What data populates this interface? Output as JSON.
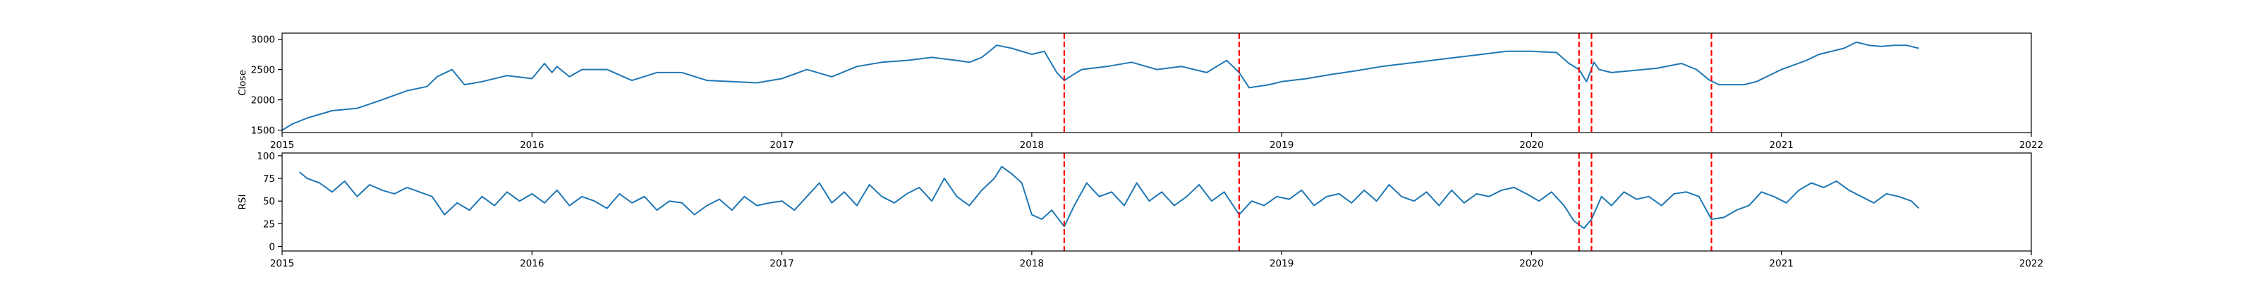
{
  "chart_data": [
    {
      "type": "line",
      "ylabel": "Close",
      "xlabel": "",
      "title": "",
      "xlim": [
        2015.0,
        2022.0
      ],
      "ylim": [
        1460,
        3100
      ],
      "x_ticks": [
        2015,
        2016,
        2017,
        2018,
        2019,
        2020,
        2021,
        2022
      ],
      "x_tick_labels": [
        "2015",
        "2016",
        "2017",
        "2018",
        "2019",
        "2020",
        "2021",
        "2022"
      ],
      "y_ticks": [
        1500,
        2000,
        2500,
        3000
      ],
      "y_tick_labels": [
        "1500",
        "2000",
        "2500",
        "3000"
      ],
      "line_color": "#1f77b4",
      "series": [
        {
          "x": [
            2015.0,
            2015.04,
            2015.1,
            2015.2,
            2015.3,
            2015.4,
            2015.5,
            2015.58,
            2015.62,
            2015.68,
            2015.73,
            2015.8,
            2015.9,
            2016.0,
            2016.05,
            2016.08,
            2016.1,
            2016.15,
            2016.2,
            2016.3,
            2016.4,
            2016.5,
            2016.6,
            2016.7,
            2016.8,
            2016.9,
            2017.0,
            2017.1,
            2017.2,
            2017.3,
            2017.4,
            2017.5,
            2017.6,
            2017.7,
            2017.75,
            2017.8,
            2017.86,
            2017.92,
            2018.0,
            2018.05,
            2018.1,
            2018.13,
            2018.16,
            2018.2,
            2018.3,
            2018.4,
            2018.5,
            2018.6,
            2018.7,
            2018.78,
            2018.83,
            2018.87,
            2018.95,
            2019.0,
            2019.1,
            2019.2,
            2019.3,
            2019.4,
            2019.5,
            2019.6,
            2019.7,
            2019.8,
            2019.9,
            2020.0,
            2020.1,
            2020.15,
            2020.19,
            2020.22,
            2020.25,
            2020.27,
            2020.32,
            2020.4,
            2020.5,
            2020.6,
            2020.66,
            2020.71,
            2020.75,
            2020.8,
            2020.85,
            2020.9,
            2021.0,
            2021.1,
            2021.15,
            2021.2,
            2021.25,
            2021.3,
            2021.35,
            2021.4,
            2021.45,
            2021.5,
            2021.55
          ],
          "y": [
            1500,
            1600,
            1700,
            1820,
            1860,
            2000,
            2150,
            2220,
            2380,
            2500,
            2250,
            2300,
            2400,
            2350,
            2600,
            2450,
            2550,
            2380,
            2500,
            2500,
            2320,
            2450,
            2450,
            2320,
            2300,
            2280,
            2350,
            2500,
            2380,
            2550,
            2620,
            2650,
            2700,
            2650,
            2620,
            2700,
            2900,
            2850,
            2750,
            2800,
            2450,
            2320,
            2400,
            2500,
            2550,
            2620,
            2500,
            2550,
            2450,
            2650,
            2450,
            2200,
            2250,
            2300,
            2350,
            2420,
            2480,
            2550,
            2600,
            2650,
            2700,
            2750,
            2800,
            2800,
            2780,
            2600,
            2500,
            2300,
            2620,
            2500,
            2450,
            2480,
            2520,
            2600,
            2500,
            2330,
            2250,
            2250,
            2250,
            2300,
            2500,
            2650,
            2750,
            2800,
            2850,
            2950,
            2900,
            2880,
            2900,
            2900,
            2850
          ]
        }
      ],
      "event_lines": [
        2018.13,
        2018.83,
        2020.19,
        2020.24,
        2020.72
      ],
      "event_line_color": "#ff0000"
    },
    {
      "type": "line",
      "ylabel": "RSI",
      "xlabel": "",
      "title": "",
      "xlim": [
        2015.0,
        2022.0
      ],
      "ylim": [
        -5,
        103
      ],
      "x_ticks": [
        2015,
        2016,
        2017,
        2018,
        2019,
        2020,
        2021,
        2022
      ],
      "x_tick_labels": [
        "2015",
        "2016",
        "2017",
        "2018",
        "2019",
        "2020",
        "2021",
        "2022"
      ],
      "y_ticks": [
        0,
        25,
        50,
        75,
        100
      ],
      "y_tick_labels": [
        "0",
        "25",
        "50",
        "75",
        "100"
      ],
      "line_color": "#1f77b4",
      "series": [
        {
          "x": [
            2015.07,
            2015.1,
            2015.15,
            2015.2,
            2015.25,
            2015.3,
            2015.35,
            2015.4,
            2015.45,
            2015.5,
            2015.55,
            2015.6,
            2015.65,
            2015.7,
            2015.75,
            2015.8,
            2015.85,
            2015.9,
            2015.95,
            2016.0,
            2016.05,
            2016.1,
            2016.15,
            2016.2,
            2016.25,
            2016.3,
            2016.35,
            2016.4,
            2016.45,
            2016.5,
            2016.55,
            2016.6,
            2016.65,
            2016.7,
            2016.75,
            2016.8,
            2016.85,
            2016.9,
            2016.95,
            2017.0,
            2017.05,
            2017.1,
            2017.15,
            2017.2,
            2017.25,
            2017.3,
            2017.35,
            2017.4,
            2017.45,
            2017.5,
            2017.55,
            2017.6,
            2017.65,
            2017.7,
            2017.75,
            2017.8,
            2017.85,
            2017.88,
            2017.92,
            2017.96,
            2018.0,
            2018.04,
            2018.08,
            2018.13,
            2018.17,
            2018.22,
            2018.27,
            2018.32,
            2018.37,
            2018.42,
            2018.47,
            2018.52,
            2018.57,
            2018.62,
            2018.67,
            2018.72,
            2018.77,
            2018.83,
            2018.88,
            2018.93,
            2018.98,
            2019.03,
            2019.08,
            2019.13,
            2019.18,
            2019.23,
            2019.28,
            2019.33,
            2019.38,
            2019.43,
            2019.48,
            2019.53,
            2019.58,
            2019.63,
            2019.68,
            2019.73,
            2019.78,
            2019.83,
            2019.88,
            2019.93,
            2019.98,
            2020.03,
            2020.08,
            2020.13,
            2020.17,
            2020.21,
            2020.24,
            2020.28,
            2020.32,
            2020.37,
            2020.42,
            2020.47,
            2020.52,
            2020.57,
            2020.62,
            2020.67,
            2020.72,
            2020.77,
            2020.82,
            2020.87,
            2020.92,
            2020.97,
            2021.02,
            2021.07,
            2021.12,
            2021.17,
            2021.22,
            2021.27,
            2021.32,
            2021.37,
            2021.42,
            2021.47,
            2021.52,
            2021.55
          ],
          "y": [
            82,
            75,
            70,
            60,
            72,
            55,
            68,
            62,
            58,
            65,
            60,
            55,
            35,
            48,
            40,
            55,
            45,
            60,
            50,
            58,
            48,
            62,
            45,
            55,
            50,
            42,
            58,
            48,
            55,
            40,
            50,
            48,
            35,
            45,
            52,
            40,
            55,
            45,
            48,
            50,
            40,
            55,
            70,
            48,
            60,
            45,
            68,
            55,
            48,
            58,
            65,
            50,
            75,
            55,
            45,
            62,
            75,
            88,
            80,
            70,
            35,
            30,
            40,
            22,
            45,
            70,
            55,
            60,
            45,
            70,
            50,
            60,
            45,
            55,
            68,
            50,
            60,
            35,
            50,
            45,
            55,
            52,
            62,
            45,
            55,
            58,
            48,
            62,
            50,
            68,
            55,
            50,
            60,
            45,
            62,
            48,
            58,
            55,
            62,
            65,
            58,
            50,
            60,
            45,
            28,
            20,
            30,
            55,
            45,
            60,
            52,
            55,
            45,
            58,
            60,
            55,
            30,
            32,
            40,
            45,
            60,
            55,
            48,
            62,
            70,
            65,
            72,
            62,
            55,
            48,
            58,
            55,
            50,
            42
          ]
        }
      ],
      "event_lines": [
        2018.13,
        2018.83,
        2020.19,
        2020.24,
        2020.72
      ],
      "event_line_color": "#ff0000"
    }
  ]
}
